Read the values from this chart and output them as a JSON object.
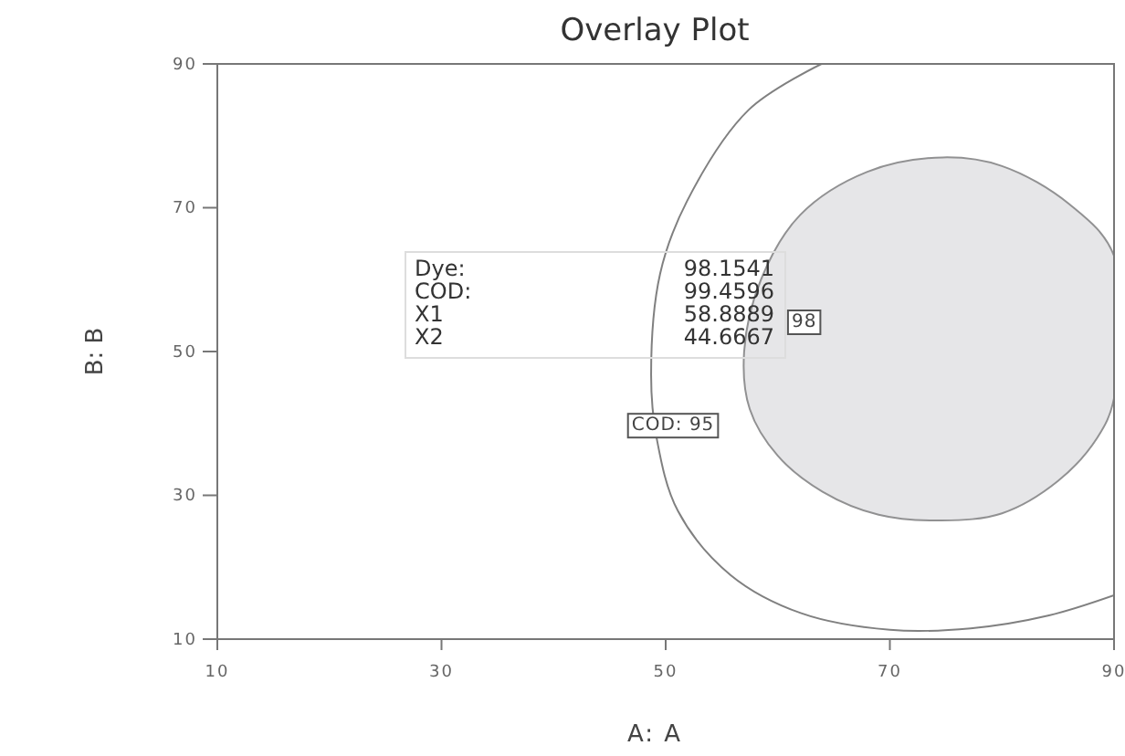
{
  "chart_data": {
    "type": "line",
    "title": "Overlay Plot",
    "xlabel": "A: A",
    "ylabel": "B: B",
    "xlim": [
      10,
      90
    ],
    "ylim": [
      10,
      90
    ],
    "xticks": [
      10,
      30,
      50,
      70,
      90
    ],
    "yticks": [
      10,
      30,
      50,
      70,
      90
    ],
    "grid": false,
    "marker": "none",
    "series": [
      {
        "name": "COD: 95",
        "color": "#808080",
        "x": [
          63.9,
          57.4,
          51.9,
          49.5,
          48.7,
          49.2,
          51.1,
          55.8,
          62.1,
          70,
          77.2,
          84.2,
          90
        ],
        "values": [
          90,
          83.6,
          70.9,
          60.8,
          46.8,
          37.9,
          27.8,
          18.9,
          13.6,
          11.3,
          11.5,
          13.3,
          16.1
        ]
      },
      {
        "name": "98",
        "type": "area",
        "color": "#e6e6e8",
        "x": [
          90,
          86,
          80,
          74.7,
          68,
          62,
          58.5,
          57,
          57.5,
          60,
          64,
          69,
          74.6,
          80,
          85,
          88.5,
          90
        ],
        "values": [
          63.3,
          70.5,
          75.8,
          77,
          75,
          69,
          60,
          50,
          42,
          35.5,
          30.5,
          27.3,
          26.5,
          27.5,
          32,
          38,
          43.5
        ]
      }
    ],
    "annotations": [
      "Dye: 98.1541",
      "COD: 99.4596",
      "X1 58.8889",
      "X2 44.6667"
    ]
  }
}
